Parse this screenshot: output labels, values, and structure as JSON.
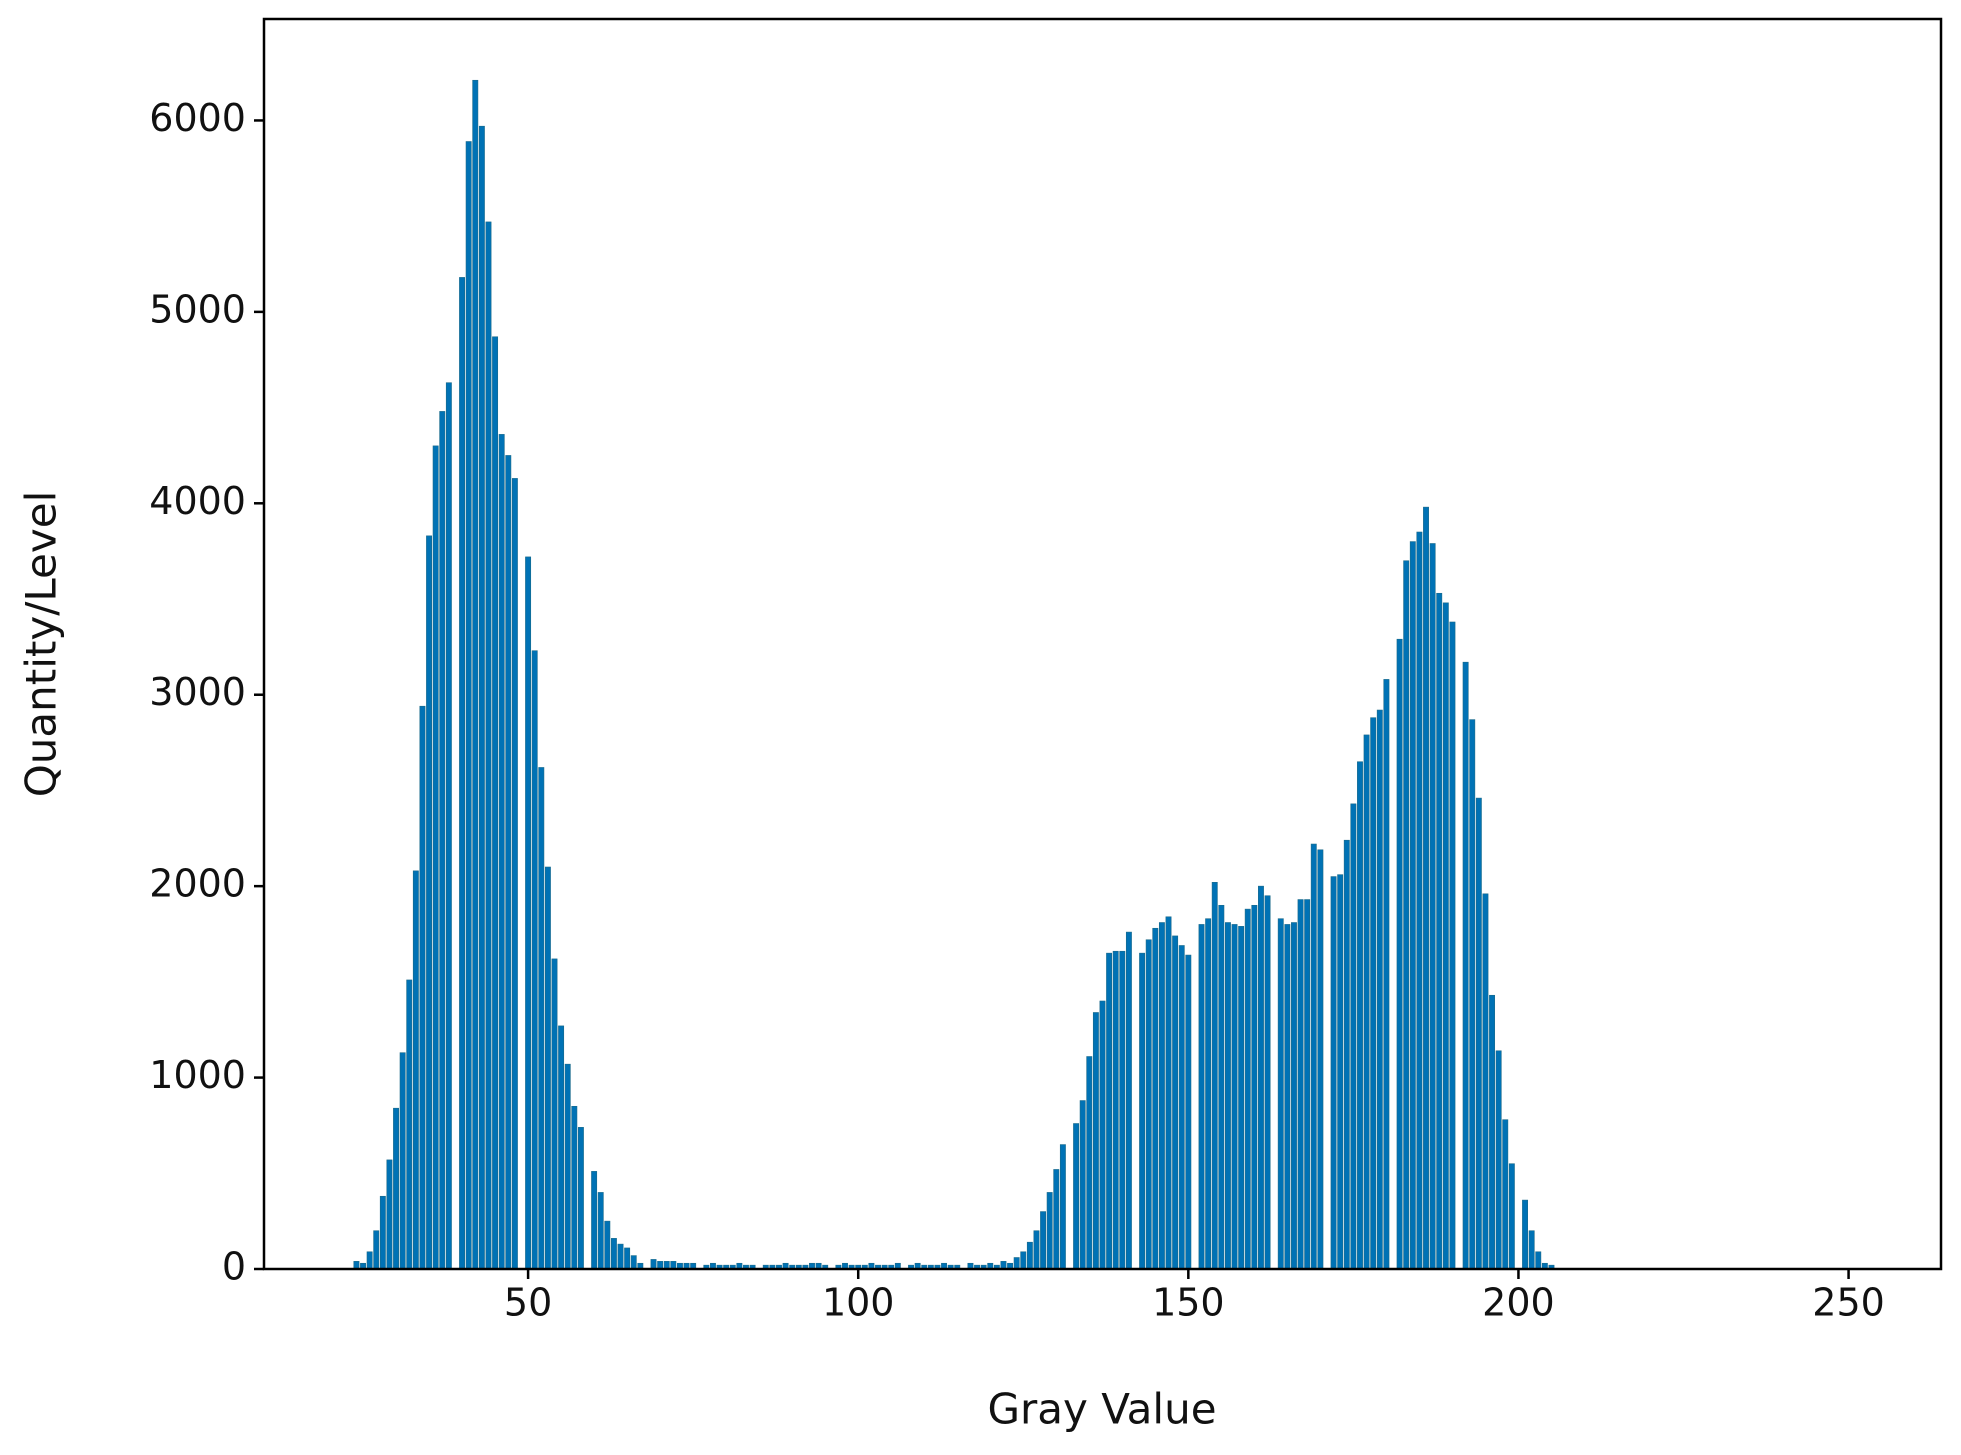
{
  "chart_data": {
    "type": "bar",
    "xlabel": "Gray Value",
    "ylabel": "Quantity/Level",
    "color": "#0072b5",
    "x": [
      24,
      25,
      26,
      27,
      28,
      29,
      30,
      31,
      32,
      33,
      34,
      35,
      36,
      37,
      38,
      39,
      40,
      41,
      42,
      43,
      44,
      45,
      46,
      47,
      48,
      49,
      50,
      51,
      52,
      53,
      54,
      55,
      56,
      57,
      58,
      59,
      60,
      61,
      62,
      63,
      64,
      65,
      66,
      67,
      68,
      69,
      70,
      71,
      72,
      73,
      74,
      75,
      76,
      77,
      78,
      79,
      80,
      81,
      82,
      83,
      84,
      85,
      86,
      87,
      88,
      89,
      90,
      91,
      92,
      93,
      94,
      95,
      96,
      97,
      98,
      99,
      100,
      101,
      102,
      103,
      104,
      105,
      106,
      107,
      108,
      109,
      110,
      111,
      112,
      113,
      114,
      115,
      116,
      117,
      118,
      119,
      120,
      121,
      122,
      123,
      124,
      125,
      126,
      127,
      128,
      129,
      130,
      131,
      132,
      133,
      134,
      135,
      136,
      137,
      138,
      139,
      140,
      141,
      142,
      143,
      144,
      145,
      146,
      147,
      148,
      149,
      150,
      151,
      152,
      153,
      154,
      155,
      156,
      157,
      158,
      159,
      160,
      161,
      162,
      163,
      164,
      165,
      166,
      167,
      168,
      169,
      170,
      171,
      172,
      173,
      174,
      175,
      176,
      177,
      178,
      179,
      180,
      181,
      182,
      183,
      184,
      185,
      186,
      187,
      188,
      189,
      190,
      191,
      192,
      193,
      194,
      195,
      196,
      197,
      198,
      199,
      200,
      201,
      202,
      203,
      204,
      205
    ],
    "values": [
      40,
      30,
      90,
      200,
      380,
      570,
      840,
      1130,
      1510,
      2080,
      2940,
      3830,
      4300,
      4480,
      4630,
      0,
      5180,
      5890,
      6210,
      5970,
      5470,
      4870,
      4360,
      4250,
      4130,
      0,
      3720,
      3230,
      2620,
      2100,
      1620,
      1270,
      1070,
      850,
      740,
      0,
      510,
      400,
      250,
      160,
      130,
      110,
      70,
      30,
      0,
      50,
      40,
      40,
      40,
      30,
      30,
      30,
      0,
      20,
      30,
      20,
      20,
      20,
      30,
      20,
      20,
      0,
      20,
      20,
      20,
      30,
      20,
      20,
      20,
      30,
      30,
      20,
      0,
      20,
      30,
      20,
      20,
      20,
      30,
      20,
      20,
      20,
      30,
      0,
      20,
      30,
      20,
      20,
      20,
      30,
      20,
      20,
      0,
      30,
      20,
      20,
      30,
      20,
      40,
      30,
      60,
      90,
      140,
      200,
      300,
      400,
      520,
      650,
      0,
      760,
      880,
      1110,
      1340,
      1400,
      1650,
      1660,
      1660,
      1760,
      0,
      1650,
      1720,
      1780,
      1810,
      1840,
      1740,
      1690,
      1640,
      0,
      1800,
      1830,
      2020,
      1900,
      1810,
      1800,
      1790,
      1880,
      1900,
      2000,
      1950,
      0,
      1830,
      1800,
      1810,
      1930,
      1930,
      2220,
      2190,
      0,
      2050,
      2060,
      2240,
      2430,
      2650,
      2790,
      2880,
      2920,
      3080,
      0,
      3290,
      3700,
      3800,
      3850,
      3980,
      3790,
      3530,
      3480,
      3380,
      0,
      3170,
      2870,
      2460,
      1960,
      1430,
      1140,
      780,
      550,
      0,
      360,
      200,
      90,
      30,
      20
    ],
    "xlim": [
      10,
      264
    ],
    "ylim": [
      0,
      6530
    ],
    "xticks": [
      50,
      100,
      150,
      200,
      250
    ],
    "yticks": [
      0,
      1000,
      2000,
      3000,
      4000,
      5000,
      6000
    ]
  }
}
